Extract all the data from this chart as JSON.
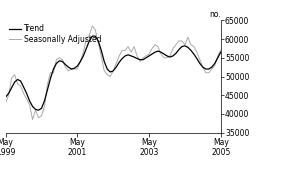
{
  "ylabel_right": "no.",
  "ylim": [
    35000,
    65000
  ],
  "yticks": [
    35000,
    40000,
    45000,
    50000,
    55000,
    60000,
    65000
  ],
  "xtick_labels": [
    "May\n1999",
    "May\n2001",
    "May\n2003",
    "May\n2005"
  ],
  "xtick_positions": [
    0,
    24,
    48,
    72
  ],
  "legend_entries": [
    "Trend",
    "Seasonally Adjusted"
  ],
  "trend_color": "#000000",
  "seasonal_color": "#aaaaaa",
  "background_color": "#ffffff",
  "trend_data": [
    44500,
    45500,
    47000,
    48500,
    49200,
    48800,
    47200,
    45500,
    43500,
    42000,
    41200,
    41000,
    41500,
    43500,
    46500,
    49500,
    52000,
    53500,
    54200,
    54000,
    53200,
    52500,
    52000,
    52200,
    52800,
    54000,
    55500,
    57500,
    59500,
    60800,
    60800,
    59500,
    57000,
    54000,
    52000,
    51200,
    51500,
    52500,
    53800,
    54800,
    55500,
    55800,
    55500,
    55200,
    54800,
    54500,
    54500,
    55000,
    55500,
    56000,
    56500,
    56800,
    56500,
    56000,
    55500,
    55200,
    55500,
    56200,
    57200,
    58000,
    58200,
    57800,
    57000,
    56000,
    54800,
    53500,
    52500,
    52000,
    52000,
    52500,
    53500,
    55000,
    56500
  ],
  "seasonal_data": [
    43000,
    45000,
    49500,
    50500,
    48000,
    47500,
    45500,
    44000,
    42500,
    38500,
    41000,
    39000,
    39500,
    42000,
    48000,
    51000,
    51000,
    54500,
    55000,
    54500,
    52500,
    51500,
    52000,
    52000,
    52000,
    54000,
    56500,
    60000,
    61000,
    63500,
    62500,
    59000,
    55500,
    51500,
    50500,
    50000,
    51500,
    53500,
    55500,
    57000,
    57000,
    58000,
    56500,
    58000,
    55500,
    54000,
    55000,
    55500,
    56000,
    57500,
    58500,
    58000,
    56000,
    55000,
    55000,
    55500,
    57500,
    58500,
    59500,
    59500,
    58500,
    60500,
    58500,
    58000,
    56500,
    54500,
    52500,
    51000,
    51000,
    52000,
    53000,
    55500,
    57000
  ]
}
